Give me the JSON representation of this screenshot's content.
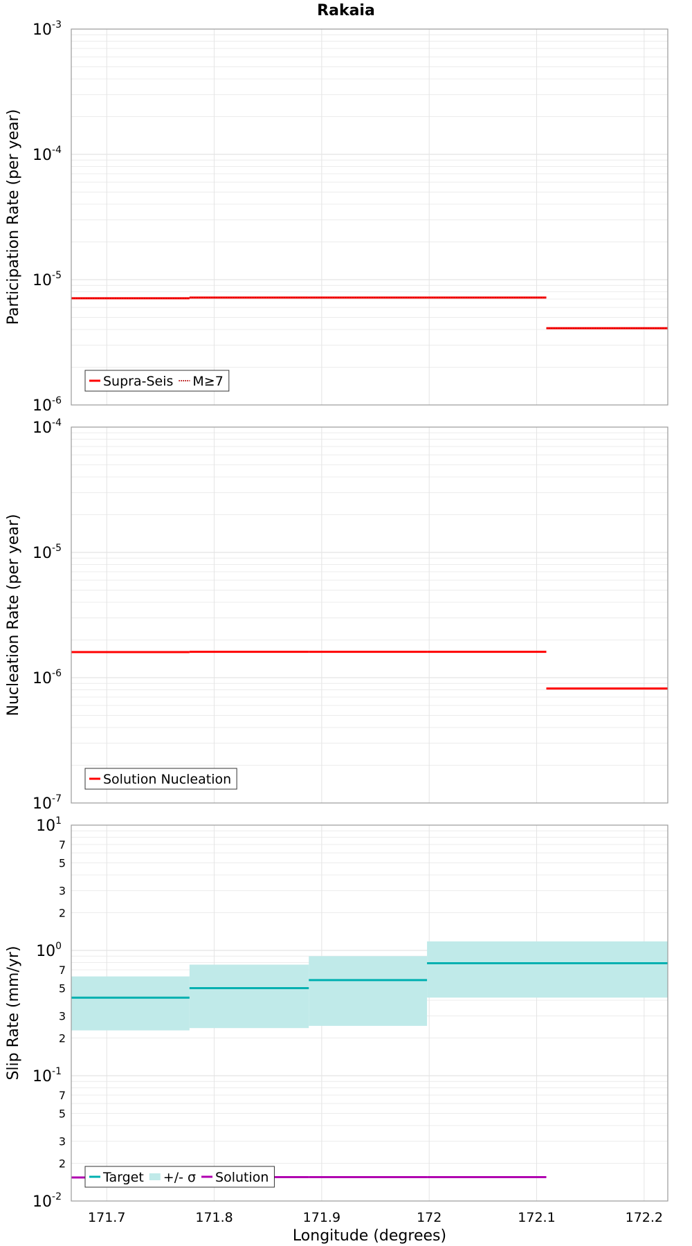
{
  "title": "Rakaia",
  "xlabel": "Longitude (degrees)",
  "x_ticks": [
    "171.7",
    "171.8",
    "171.9",
    "172",
    "172.1",
    "172.2"
  ],
  "chart_data": [
    {
      "type": "line",
      "ylabel": "Participation Rate (per year)",
      "yscale": "log",
      "xlim": [
        171.667,
        172.222
      ],
      "ylim": [
        1e-06,
        0.001
      ],
      "y_tick_labels": [
        {
          "base": "10",
          "exp": "-6"
        },
        {
          "base": "10",
          "exp": "-5"
        },
        {
          "base": "10",
          "exp": "-4"
        },
        {
          "base": "10",
          "exp": "-3"
        }
      ],
      "legend": {
        "placement": "bottom-left",
        "entries": [
          {
            "label": "Supra-Seis",
            "style": "solid",
            "color": "#ff0000"
          },
          {
            "label": "M≥7",
            "style": "dotted",
            "color": "#ff0000"
          }
        ]
      },
      "series": [
        {
          "name": "Supra-Seis",
          "color": "#ff0000",
          "style": "solid",
          "segments": [
            [
              171.667,
              171.777,
              7.1e-06
            ],
            [
              171.777,
              171.888,
              7.2e-06
            ],
            [
              171.888,
              171.998,
              7.2e-06
            ],
            [
              171.998,
              172.109,
              7.2e-06
            ],
            [
              172.109,
              172.222,
              4.1e-06
            ]
          ]
        },
        {
          "name": "M≥7",
          "color": "#ff0000",
          "style": "dotted",
          "segments": [
            [
              171.667,
              171.777,
              7.1e-06
            ],
            [
              171.777,
              171.888,
              7.2e-06
            ],
            [
              171.888,
              171.998,
              7.2e-06
            ],
            [
              171.998,
              172.109,
              7.2e-06
            ],
            [
              172.109,
              172.222,
              4.1e-06
            ]
          ]
        }
      ]
    },
    {
      "type": "line",
      "ylabel": "Nucleation Rate (per year)",
      "yscale": "log",
      "xlim": [
        171.667,
        172.222
      ],
      "ylim": [
        1e-07,
        0.0001
      ],
      "y_tick_labels": [
        {
          "base": "10",
          "exp": "-7"
        },
        {
          "base": "10",
          "exp": "-6"
        },
        {
          "base": "10",
          "exp": "-5"
        },
        {
          "base": "10",
          "exp": "-4"
        }
      ],
      "legend": {
        "placement": "bottom-left",
        "entries": [
          {
            "label": "Solution Nucleation",
            "style": "solid",
            "color": "#ff0000"
          }
        ]
      },
      "series": [
        {
          "name": "Solution Nucleation",
          "color": "#ff0000",
          "style": "solid",
          "segments": [
            [
              171.667,
              171.777,
              1.6e-06
            ],
            [
              171.777,
              171.888,
              1.61e-06
            ],
            [
              171.888,
              171.998,
              1.61e-06
            ],
            [
              171.998,
              172.109,
              1.61e-06
            ],
            [
              172.109,
              172.222,
              8.2e-07
            ]
          ]
        }
      ]
    },
    {
      "type": "line",
      "ylabel": "Slip Rate (mm/yr)",
      "yscale": "log",
      "xlim": [
        171.667,
        172.222
      ],
      "ylim": [
        0.01,
        10
      ],
      "y_tick_labels": [
        {
          "base": "10",
          "exp": "-2"
        },
        {
          "base": "10",
          "exp": "-1"
        },
        {
          "base": "10",
          "exp": "0"
        },
        {
          "base": "10",
          "exp": "1"
        }
      ],
      "y_minor_labels": [
        "2",
        "3",
        "5",
        "7"
      ],
      "legend": {
        "placement": "bottom-left",
        "entries": [
          {
            "label": "Target",
            "style": "solid",
            "color": "#00b0b0"
          },
          {
            "label": "+/- σ",
            "style": "band",
            "color": "#c0eae9"
          },
          {
            "label": "Solution",
            "style": "solid",
            "color": "#b000b0"
          }
        ]
      },
      "bands": [
        {
          "name": "+/- σ",
          "color": "#c0eae9",
          "segments": [
            [
              171.667,
              171.777,
              0.23,
              0.62
            ],
            [
              171.777,
              171.888,
              0.24,
              0.77
            ],
            [
              171.888,
              171.998,
              0.25,
              0.9
            ],
            [
              171.998,
              172.222,
              0.42,
              1.18
            ]
          ]
        }
      ],
      "series": [
        {
          "name": "Target",
          "color": "#00b0b0",
          "style": "solid",
          "segments": [
            [
              171.667,
              171.777,
              0.42
            ],
            [
              171.777,
              171.888,
              0.5
            ],
            [
              171.888,
              171.998,
              0.58
            ],
            [
              171.998,
              172.222,
              0.79
            ]
          ]
        },
        {
          "name": "Solution",
          "color": "#b000b0",
          "style": "solid",
          "segments": [
            [
              171.667,
              171.777,
              0.0154
            ],
            [
              171.777,
              171.888,
              0.0155
            ],
            [
              171.888,
              171.998,
              0.0155
            ],
            [
              171.998,
              172.109,
              0.0155
            ]
          ]
        }
      ]
    }
  ]
}
